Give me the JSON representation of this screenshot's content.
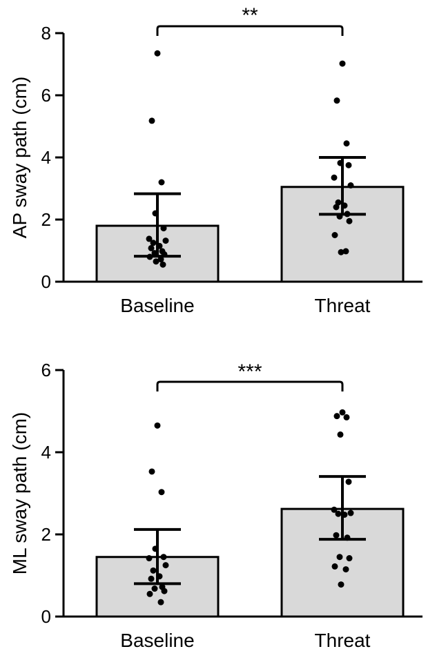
{
  "colors": {
    "bar_fill": "#d9d9d9",
    "stroke": "#000000",
    "point": "#000000"
  },
  "chart_data": [
    {
      "type": "bar",
      "ylabel": "AP sway path (cm)",
      "categories": [
        "Baseline",
        "Threat"
      ],
      "ylim": [
        0,
        8
      ],
      "yticks": [
        "0",
        "2",
        "4",
        "6",
        "8"
      ],
      "grid": false,
      "means": [
        1.8,
        3.05
      ],
      "error_bars": [
        {
          "low": 0.82,
          "high": 2.83
        },
        {
          "low": 2.17,
          "high": 4.0
        }
      ],
      "points": [
        [
          7.35,
          5.18,
          3.2,
          2.2,
          1.72,
          1.38,
          1.32,
          1.25,
          1.15,
          1.08,
          0.98,
          0.92,
          0.88,
          0.8,
          0.72,
          0.65,
          0.55
        ],
        [
          7.02,
          5.83,
          4.45,
          3.82,
          3.75,
          3.35,
          3.1,
          2.55,
          2.45,
          2.4,
          2.18,
          2.1,
          1.95,
          1.5,
          0.98,
          0.95
        ]
      ],
      "significance": "**"
    },
    {
      "type": "bar",
      "ylabel": "ML sway path (cm)",
      "categories": [
        "Baseline",
        "Threat"
      ],
      "ylim": [
        0,
        6
      ],
      "yticks": [
        "0",
        "2",
        "4",
        "6"
      ],
      "grid": false,
      "means": [
        1.45,
        2.62
      ],
      "error_bars": [
        {
          "low": 0.8,
          "high": 2.12
        },
        {
          "low": 1.88,
          "high": 3.41
        }
      ],
      "points": [
        [
          4.65,
          3.53,
          3.03,
          1.65,
          1.45,
          1.42,
          1.25,
          1.12,
          0.98,
          0.92,
          0.72,
          0.68,
          0.62,
          0.55,
          0.35
        ],
        [
          4.97,
          4.88,
          4.85,
          4.43,
          3.28,
          2.6,
          2.52,
          2.5,
          2.48,
          1.98,
          1.92,
          1.45,
          1.42,
          1.22,
          1.15,
          0.78
        ]
      ],
      "significance": "***"
    }
  ]
}
